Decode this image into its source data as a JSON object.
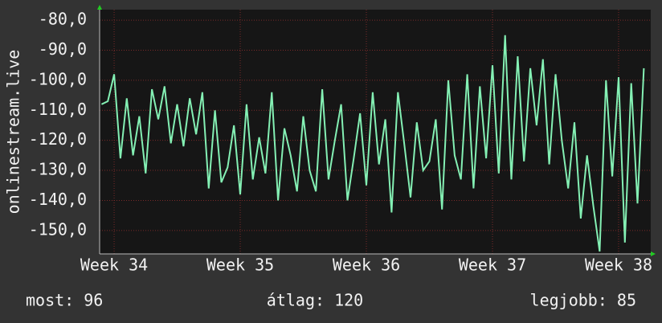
{
  "chart_data": {
    "type": "line",
    "y_label": "onlinestream.live",
    "xlim": [
      33.885,
      38.255
    ],
    "ylim": [
      -157.8,
      -76.5
    ],
    "xticks": [
      {
        "value": 34,
        "label": "Week 34"
      },
      {
        "value": 35,
        "label": "Week 35"
      },
      {
        "value": 36,
        "label": "Week 36"
      },
      {
        "value": 37,
        "label": "Week 37"
      },
      {
        "value": 38,
        "label": "Week 38"
      }
    ],
    "yticks": [
      {
        "value": -80,
        "label": "-80,0"
      },
      {
        "value": -90,
        "label": "-90,0"
      },
      {
        "value": -100,
        "label": "-100,0"
      },
      {
        "value": -110,
        "label": "-110,0"
      },
      {
        "value": -120,
        "label": "-120,0"
      },
      {
        "value": -130,
        "label": "-130,0"
      },
      {
        "value": -140,
        "label": "-140,0"
      },
      {
        "value": -150,
        "label": "-150,0"
      }
    ],
    "grid": true,
    "x": [
      33.9,
      33.95,
      34,
      34.05,
      34.1,
      34.15,
      34.2,
      34.25,
      34.3,
      34.35,
      34.4,
      34.45,
      34.5,
      34.55,
      34.6,
      34.65,
      34.7,
      34.75,
      34.8,
      34.85,
      34.9,
      34.95,
      35,
      35.05,
      35.1,
      35.15,
      35.2,
      35.25,
      35.3,
      35.35,
      35.4,
      35.45,
      35.5,
      35.55,
      35.6,
      35.65,
      35.7,
      35.75,
      35.8,
      35.85,
      35.9,
      35.95,
      36,
      36.05,
      36.1,
      36.15,
      36.2,
      36.25,
      36.3,
      36.35,
      36.4,
      36.45,
      36.5,
      36.55,
      36.6,
      36.65,
      36.7,
      36.75,
      36.8,
      36.85,
      36.9,
      36.95,
      37,
      37.05,
      37.1,
      37.15,
      37.2,
      37.25,
      37.3,
      37.35,
      37.4,
      37.45,
      37.5,
      37.55,
      37.6,
      37.65,
      37.7,
      37.75,
      37.8,
      37.85,
      37.9,
      37.95,
      38,
      38.05,
      38.1,
      38.15,
      38.2
    ],
    "series": [
      {
        "color": "#84f0b4",
        "values": [
          -108,
          -107,
          -98,
          -126,
          -106,
          -125,
          -112,
          -131,
          -103,
          -113,
          -102,
          -121,
          -108,
          -122,
          -106,
          -118,
          -104,
          -136,
          -110,
          -134,
          -129,
          -115,
          -138,
          -108,
          -133,
          -119,
          -131,
          -104,
          -140,
          -116,
          -125,
          -137,
          -112,
          -130,
          -137,
          -103,
          -133,
          -120,
          -108,
          -140,
          -126,
          -111,
          -135,
          -104,
          -128,
          -113,
          -144,
          -104,
          -121,
          -139,
          -114,
          -130,
          -127,
          -113,
          -143,
          -100,
          -125,
          -133,
          -98,
          -136,
          -102,
          -126,
          -95,
          -131,
          -85,
          -133,
          -92,
          -127,
          -96,
          -115,
          -93,
          -128,
          -98,
          -120,
          -136,
          -114,
          -146,
          -125,
          -142,
          -157,
          -100,
          -132,
          -99,
          -154,
          -101,
          -141,
          -96
        ]
      }
    ],
    "stats": [
      "most: 96",
      "átlag: 120",
      "legjobb: 85"
    ]
  }
}
